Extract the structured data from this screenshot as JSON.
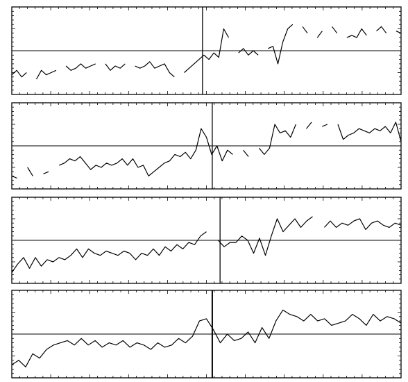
{
  "figure": {
    "colors": {
      "line": "#000000",
      "frame": "#000000",
      "background": "#ffffff"
    }
  },
  "chart_data": [
    {
      "type": "line",
      "grid": false,
      "xlim": [
        0,
        1
      ],
      "ylim": [
        -1,
        1
      ],
      "reference_line_y": 0,
      "vertical_marker_x": 0.49,
      "series": [
        {
          "values": [
            -0.55,
            -0.45,
            -0.6,
            -0.5,
            null,
            -0.65,
            -0.45,
            -0.55,
            -0.5,
            -0.45,
            null,
            -0.35,
            -0.45,
            -0.4,
            -0.3,
            -0.4,
            -0.35,
            -0.3,
            null,
            -0.3,
            -0.45,
            -0.35,
            -0.4,
            -0.3,
            null,
            -0.35,
            -0.4,
            -0.35,
            -0.25,
            -0.4,
            -0.35,
            -0.3,
            -0.5,
            -0.6,
            null,
            -0.5,
            -0.4,
            -0.3,
            -0.2,
            -0.1,
            -0.2,
            -0.05,
            -0.15,
            0.5,
            0.3,
            null,
            -0.05,
            0.05,
            -0.1,
            0.0,
            -0.1,
            null,
            0.05,
            0.1,
            -0.3,
            0.2,
            0.5,
            0.6,
            null,
            0.55,
            0.4,
            null,
            0.3,
            0.45,
            null,
            0.55,
            0.4,
            null,
            0.3,
            0.35,
            0.3,
            0.5,
            0.35,
            null,
            0.45,
            0.55,
            0.4,
            null,
            0.45,
            0.4
          ]
        }
      ]
    },
    {
      "type": "line",
      "grid": false,
      "xlim": [
        0,
        1
      ],
      "ylim": [
        -1,
        1
      ],
      "reference_line_y": 0,
      "vertical_marker_x": 0.515,
      "series": [
        {
          "values": [
            -0.7,
            -0.75,
            null,
            -0.5,
            -0.7,
            null,
            -0.65,
            -0.6,
            null,
            -0.45,
            -0.4,
            -0.3,
            -0.35,
            -0.25,
            -0.4,
            -0.55,
            -0.45,
            -0.5,
            -0.4,
            -0.45,
            -0.4,
            -0.3,
            -0.45,
            -0.3,
            -0.5,
            -0.45,
            -0.7,
            -0.6,
            -0.5,
            -0.4,
            -0.35,
            -0.2,
            -0.25,
            -0.15,
            -0.3,
            -0.1,
            0.4,
            0.2,
            -0.2,
            0.0,
            -0.35,
            -0.1,
            -0.2,
            null,
            -0.1,
            -0.25,
            null,
            -0.05,
            -0.2,
            -0.05,
            0.5,
            0.3,
            0.35,
            0.2,
            0.5,
            null,
            0.4,
            0.55,
            null,
            0.45,
            0.5,
            null,
            0.5,
            0.15,
            0.25,
            0.3,
            0.4,
            0.35,
            0.3,
            0.4,
            0.35,
            0.45,
            0.3,
            0.55,
            0.1
          ]
        }
      ]
    },
    {
      "type": "line",
      "grid": false,
      "xlim": [
        0,
        1
      ],
      "ylim": [
        -1,
        1
      ],
      "reference_line_y": 0,
      "vertical_marker_x": 0.535,
      "series": [
        {
          "values": [
            -0.75,
            -0.55,
            -0.4,
            -0.65,
            -0.4,
            -0.6,
            -0.45,
            -0.5,
            -0.4,
            -0.45,
            -0.35,
            -0.2,
            -0.4,
            -0.2,
            -0.3,
            -0.35,
            -0.25,
            -0.3,
            -0.35,
            -0.25,
            -0.3,
            -0.45,
            -0.3,
            -0.35,
            -0.2,
            -0.35,
            -0.15,
            -0.25,
            -0.1,
            -0.2,
            -0.05,
            -0.1,
            0.1,
            0.2,
            null,
            0.0,
            -0.15,
            -0.05,
            -0.05,
            0.1,
            0.0,
            -0.3,
            0.05,
            -0.35,
            0.1,
            0.5,
            0.2,
            0.35,
            0.5,
            0.3,
            0.45,
            0.55,
            null,
            0.3,
            0.45,
            0.3,
            0.4,
            0.35,
            0.45,
            0.5,
            0.25,
            0.4,
            0.45,
            0.35,
            0.3,
            0.4,
            0.35
          ]
        }
      ]
    },
    {
      "type": "line",
      "grid": false,
      "xlim": [
        0,
        1
      ],
      "ylim": [
        -1,
        1
      ],
      "reference_line_y": 0,
      "vertical_marker_x": 0.515,
      "series": [
        {
          "values": [
            -0.7,
            -0.6,
            -0.75,
            -0.45,
            -0.55,
            -0.35,
            -0.25,
            -0.2,
            -0.15,
            -0.25,
            -0.1,
            -0.25,
            -0.15,
            -0.3,
            -0.2,
            -0.25,
            -0.15,
            -0.3,
            -0.2,
            -0.25,
            -0.35,
            -0.2,
            -0.3,
            -0.25,
            -0.1,
            -0.2,
            -0.05,
            0.3,
            0.35,
            0.1,
            -0.2,
            0.0,
            -0.15,
            -0.1,
            0.05,
            -0.2,
            0.15,
            -0.1,
            0.3,
            0.55,
            0.45,
            0.4,
            0.3,
            0.45,
            0.3,
            0.35,
            0.2,
            0.25,
            0.3,
            0.45,
            0.35,
            0.2,
            0.45,
            0.3,
            0.4,
            0.35,
            0.25
          ]
        }
      ]
    }
  ]
}
